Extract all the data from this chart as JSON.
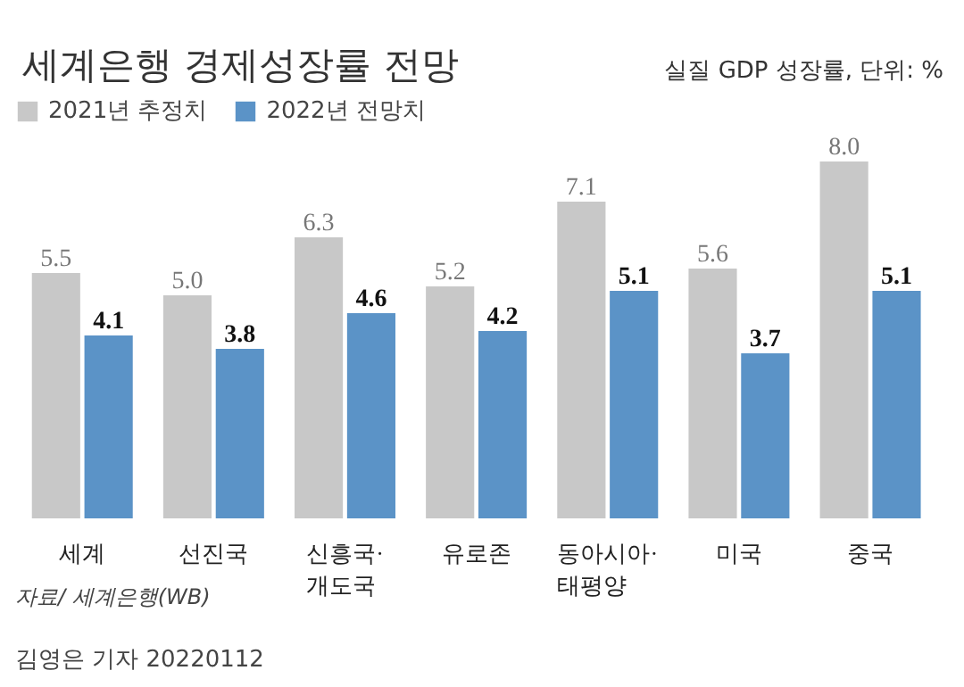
{
  "chart_data": {
    "type": "bar",
    "title": "세계은행 경제성장률 전망",
    "subtitle": "실질 GDP 성장률, 단위: %",
    "categories": [
      "세계",
      "선진국",
      "신흥국·\n개도국",
      "유로존",
      "동아시아·\n태평양",
      "미국",
      "중국"
    ],
    "series": [
      {
        "name": "2021년 추정치",
        "color": "#c8c8c8",
        "values": [
          5.5,
          5.0,
          6.3,
          5.2,
          7.1,
          5.6,
          8.0
        ],
        "value_labels": [
          "5.5",
          "5.0",
          "6.3",
          "5.2",
          "7.1",
          "5.6",
          "8.0"
        ]
      },
      {
        "name": "2022년 전망치",
        "color": "#5b93c7",
        "values": [
          4.1,
          3.8,
          4.6,
          4.2,
          5.1,
          3.7,
          5.1
        ],
        "value_labels": [
          "4.1",
          "3.8",
          "4.6",
          "4.2",
          "5.1",
          "3.7",
          "5.1"
        ]
      }
    ],
    "data_labels": true,
    "legend": "top left",
    "grid": false,
    "annotations": [
      "자료/ 세계은행(WB)",
      "김영은 기자  20220112"
    ]
  }
}
